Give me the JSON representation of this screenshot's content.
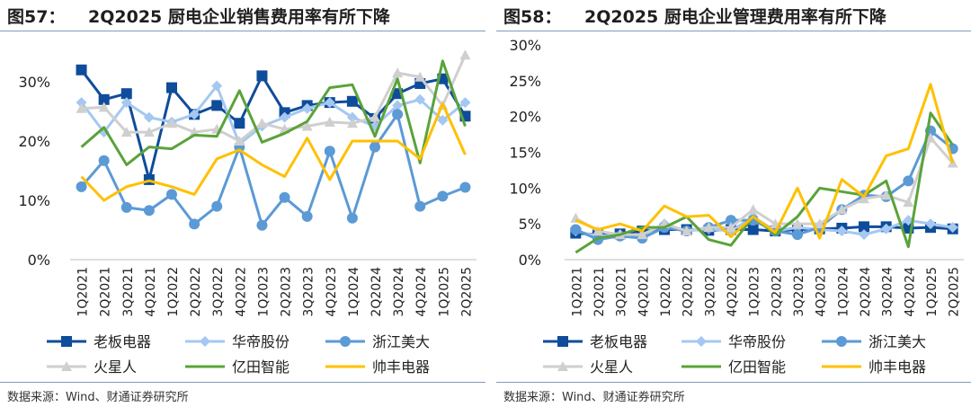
{
  "figures": [
    {
      "label": "图57：",
      "title": "2Q2025 厨电企业销售费用率有所下降",
      "source": "数据来源：Wind、财通证券研究所"
    },
    {
      "label": "图58：",
      "title": "2Q2025 厨电企业管理费用率有所下降",
      "source": "数据来源：Wind、财通证券研究所"
    }
  ],
  "chart_data": [
    {
      "type": "line",
      "title": "2Q2025 厨电企业销售费用率有所下降",
      "xlabel": "",
      "ylabel": "",
      "ylim": [
        0,
        0.35
      ],
      "yticks": [
        0,
        0.1,
        0.2,
        0.3
      ],
      "ytick_labels": [
        "0%",
        "10%",
        "20%",
        "30%"
      ],
      "categories": [
        "1Q2021",
        "2Q2021",
        "3Q2021",
        "4Q2021",
        "1Q2022",
        "2Q2022",
        "3Q2022",
        "4Q2022",
        "1Q2023",
        "2Q2023",
        "3Q2023",
        "4Q2023",
        "1Q2024",
        "2Q2024",
        "3Q2024",
        "4Q2024",
        "1Q2025",
        "2Q2025"
      ],
      "x_tick_labels": [
        "1Q2021",
        "2Q2021",
        "3Q2021",
        "4Q2021",
        "1Q2022",
        "2Q2022",
        "3Q2022",
        "4Q2022",
        "1Q2023",
        "2Q2023",
        "3Q2023",
        "4Q2023",
        "1Q2024",
        "2Q2024",
        "3Q2024",
        "4Q2024",
        "1Q2025",
        "2Q2025"
      ],
      "legend": "bottom",
      "series": [
        {
          "name": "老板电器",
          "color": "#0f4c9b",
          "marker": "square",
          "values": [
            0.32,
            0.27,
            0.28,
            0.135,
            0.29,
            0.245,
            0.26,
            0.23,
            0.31,
            0.248,
            0.26,
            0.265,
            0.267,
            0.238,
            0.28,
            0.297,
            0.305,
            0.242
          ]
        },
        {
          "name": "华帝股份",
          "color": "#a4c8f0",
          "marker": "diamond",
          "values": [
            0.265,
            0.215,
            0.265,
            0.24,
            0.232,
            0.245,
            0.293,
            0.195,
            0.225,
            0.24,
            0.255,
            0.265,
            0.24,
            0.225,
            0.26,
            0.27,
            0.235,
            0.265
          ]
        },
        {
          "name": "浙江美大",
          "color": "#5b9ad5",
          "marker": "circle",
          "values": [
            0.123,
            0.167,
            0.088,
            0.083,
            0.11,
            0.06,
            0.09,
            0.19,
            0.058,
            0.105,
            0.073,
            0.183,
            0.07,
            0.19,
            0.245,
            0.09,
            0.107,
            0.122
          ]
        },
        {
          "name": "火星人",
          "color": "#cfcfcf",
          "marker": "triangle",
          "values": [
            0.255,
            0.257,
            0.215,
            0.215,
            0.23,
            0.215,
            0.22,
            0.2,
            0.23,
            0.22,
            0.225,
            0.232,
            0.23,
            0.24,
            0.315,
            0.308,
            0.26,
            0.345
          ]
        },
        {
          "name": "亿田智能",
          "color": "#5aa33a",
          "marker": "none",
          "values": [
            0.19,
            0.223,
            0.16,
            0.19,
            0.187,
            0.21,
            0.208,
            0.285,
            0.198,
            0.213,
            0.233,
            0.29,
            0.295,
            0.208,
            0.305,
            0.163,
            0.335,
            0.225
          ]
        },
        {
          "name": "帅丰电器",
          "color": "#ffc000",
          "marker": "none",
          "values": [
            0.14,
            0.1,
            0.123,
            0.133,
            0.123,
            0.11,
            0.17,
            0.185,
            0.16,
            0.14,
            0.205,
            0.135,
            0.2,
            0.2,
            0.2,
            0.17,
            0.263,
            0.177
          ]
        }
      ]
    },
    {
      "type": "line",
      "title": "2Q2025 厨电企业管理费用率有所下降",
      "xlabel": "",
      "ylabel": "",
      "ylim": [
        0,
        0.3
      ],
      "yticks": [
        0,
        0.05,
        0.1,
        0.15,
        0.2,
        0.25,
        0.3
      ],
      "ytick_labels": [
        "0%",
        "5%",
        "10%",
        "15%",
        "20%",
        "25%",
        "30%"
      ],
      "categories": [
        "1Q2021",
        "2Q2021",
        "3Q2021",
        "4Q2021",
        "1Q2022",
        "2Q2022",
        "3Q2022",
        "4Q2022",
        "1Q2023",
        "2Q2023",
        "3Q2023",
        "4Q2023",
        "1Q2024",
        "2Q2024",
        "3Q2024",
        "4Q2024",
        "1Q2025",
        "2Q2025"
      ],
      "x_tick_labels": [
        "1Q2021",
        "2Q2021",
        "3Q2021",
        "4Q2021",
        "1Q2022",
        "2Q2022",
        "3Q2022",
        "4Q2022",
        "1Q2023",
        "2Q2023",
        "3Q2023",
        "4Q2023",
        "1Q2024",
        "2Q2024",
        "3Q2024",
        "4Q2024",
        "1Q2025",
        "2Q2025"
      ],
      "legend": "bottom",
      "series": [
        {
          "name": "老板电器",
          "color": "#0f4c9b",
          "marker": "square",
          "values": [
            0.037,
            0.035,
            0.036,
            0.04,
            0.042,
            0.042,
            0.041,
            0.042,
            0.042,
            0.04,
            0.042,
            0.043,
            0.044,
            0.046,
            0.046,
            0.044,
            0.045,
            0.043
          ]
        },
        {
          "name": "华帝股份",
          "color": "#a4c8f0",
          "marker": "diamond",
          "values": [
            0.04,
            0.033,
            0.035,
            0.034,
            0.05,
            0.04,
            0.043,
            0.04,
            0.06,
            0.04,
            0.045,
            0.042,
            0.04,
            0.035,
            0.043,
            0.055,
            0.05,
            0.045
          ]
        },
        {
          "name": "浙江美大",
          "color": "#5b9ad5",
          "marker": "circle",
          "values": [
            0.042,
            0.028,
            0.033,
            0.03,
            0.045,
            0.04,
            0.045,
            0.055,
            0.055,
            0.04,
            0.035,
            0.045,
            0.07,
            0.09,
            0.088,
            0.11,
            0.18,
            0.155
          ]
        },
        {
          "name": "火星人",
          "color": "#cfcfcf",
          "marker": "triangle",
          "values": [
            0.058,
            0.04,
            0.035,
            0.035,
            0.05,
            0.04,
            0.045,
            0.045,
            0.07,
            0.05,
            0.05,
            0.05,
            0.07,
            0.085,
            0.09,
            0.08,
            0.17,
            0.135
          ]
        },
        {
          "name": "亿田智能",
          "color": "#5aa33a",
          "marker": "none",
          "values": [
            0.01,
            0.03,
            0.035,
            0.045,
            0.045,
            0.06,
            0.028,
            0.02,
            0.06,
            0.035,
            0.06,
            0.1,
            0.095,
            0.09,
            0.11,
            0.018,
            0.205,
            0.16
          ]
        },
        {
          "name": "帅丰电器",
          "color": "#ffc000",
          "marker": "none",
          "values": [
            0.055,
            0.042,
            0.05,
            0.04,
            0.075,
            0.06,
            0.062,
            0.032,
            0.06,
            0.038,
            0.1,
            0.03,
            0.112,
            0.088,
            0.145,
            0.155,
            0.245,
            0.135
          ]
        }
      ]
    }
  ]
}
